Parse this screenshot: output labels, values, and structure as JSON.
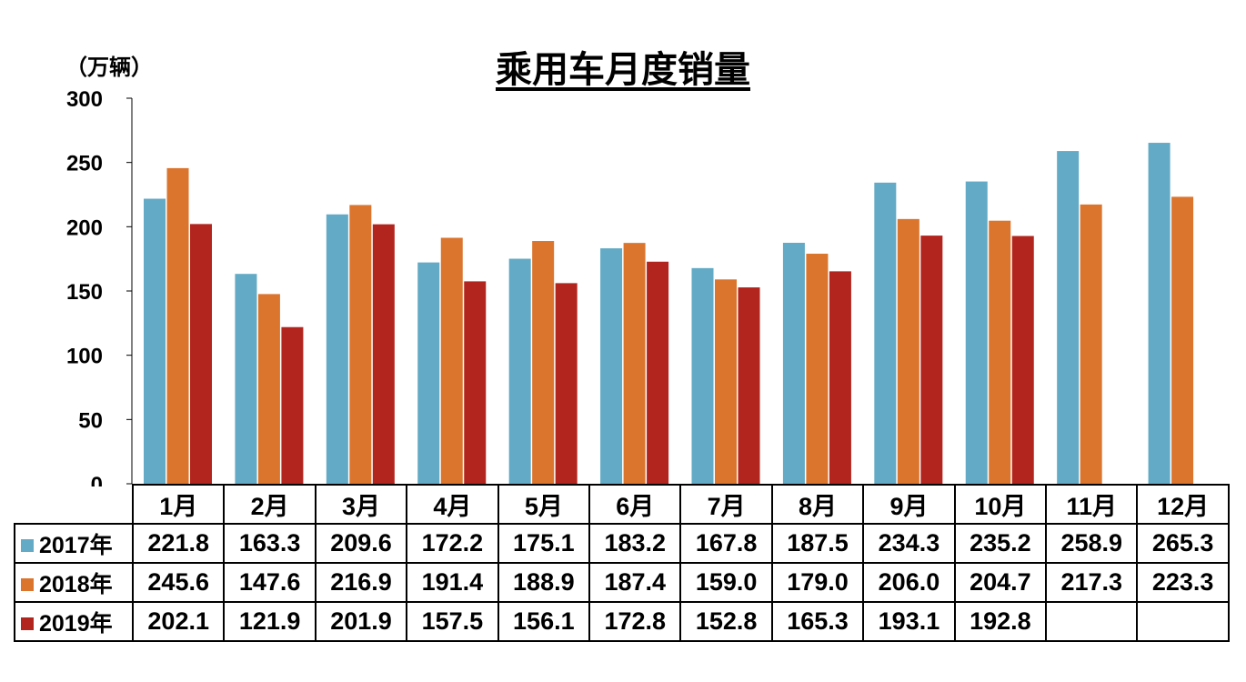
{
  "chart_data": {
    "type": "bar",
    "title": "乘用车月度销量",
    "ylabel": "（万辆）",
    "ylim": [
      0,
      300
    ],
    "yticks": [
      0,
      50,
      100,
      150,
      200,
      250,
      300
    ],
    "categories": [
      "1月",
      "2月",
      "3月",
      "4月",
      "5月",
      "6月",
      "7月",
      "8月",
      "9月",
      "10月",
      "11月",
      "12月"
    ],
    "series": [
      {
        "name": "2017年",
        "color": "#62AAC5",
        "values": [
          221.8,
          163.3,
          209.6,
          172.2,
          175.1,
          183.2,
          167.8,
          187.5,
          234.3,
          235.2,
          258.9,
          265.3
        ]
      },
      {
        "name": "2018年",
        "color": "#DB752E",
        "values": [
          245.6,
          147.6,
          216.9,
          191.4,
          188.9,
          187.4,
          159.0,
          179.0,
          206.0,
          204.7,
          217.3,
          223.3
        ]
      },
      {
        "name": "2019年",
        "color": "#B2251E",
        "values": [
          202.1,
          121.9,
          201.9,
          157.5,
          156.1,
          172.8,
          152.8,
          165.3,
          193.1,
          192.8,
          null,
          null
        ]
      }
    ],
    "grid": false,
    "legend": "data-table-below"
  }
}
